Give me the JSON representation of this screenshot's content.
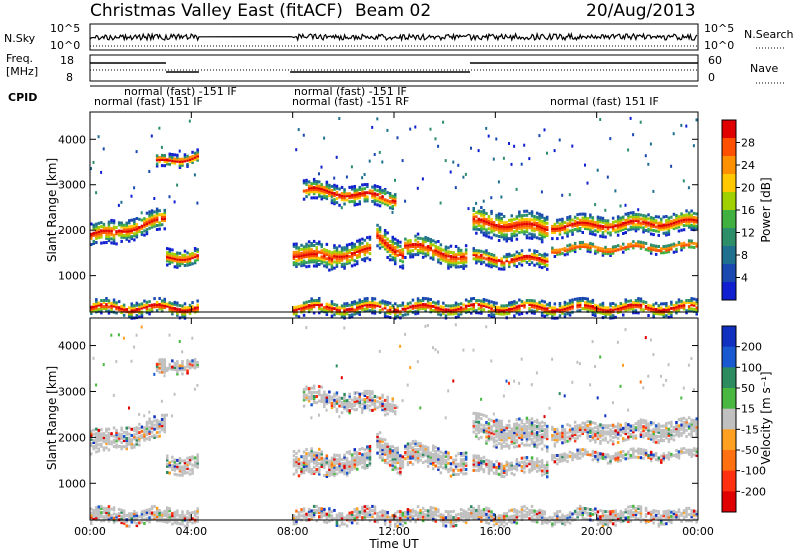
{
  "header": {
    "station": "Christmas Valley East (fitACF)",
    "beam": "Beam 02",
    "date": "20/Aug/2013"
  },
  "params": {
    "nsky_label": "N.Sky",
    "nsky_ticks": [
      "10^5",
      "10^0"
    ],
    "nsearch_label": "N.Search",
    "nsearch_ticks": [
      "10^5",
      "10^0"
    ],
    "freq_label_1": "Freq.",
    "freq_label_2": "[MHz]",
    "freq_ticks": [
      "18",
      "8"
    ],
    "nave_label": "Nave",
    "nave_ticks": [
      "60",
      "0"
    ],
    "cpid_label": "CPID"
  },
  "cpid_segments": [
    {
      "text": "normal (fast) -151 IF",
      "row": 1
    },
    {
      "text": "normal (fast) 151 IF",
      "row": 2
    },
    {
      "text": "normal (fast) -151 IF",
      "row": 1
    },
    {
      "text": "normal (fast) -151 RF",
      "row": 2
    },
    {
      "text": "normal (fast) 151 IF",
      "row": 2
    }
  ],
  "chart_data": [
    {
      "type": "heatmap",
      "title": "Power",
      "xlabel": "",
      "ylabel": "Slant Range [km]",
      "x_ticks": [
        "00:00",
        "04:00",
        "08:00",
        "12:00",
        "16:00",
        "20:00",
        "00:00"
      ],
      "y_ticks": [
        "1000",
        "2000",
        "3000",
        "4000"
      ],
      "ylim": [
        200,
        4600
      ],
      "colorbar_label": "Power [dB]",
      "colorbar_ticks": [
        "28",
        "24",
        "20",
        "16",
        "12",
        "8",
        "4"
      ],
      "colorbar_colors": [
        "#e00000",
        "#ff5000",
        "#ff9000",
        "#ffc800",
        "#a0d000",
        "#40b040",
        "#2d8f6a",
        "#1f6f8f",
        "#1848b0",
        "#1020d0"
      ]
    },
    {
      "type": "heatmap",
      "title": "Velocity",
      "xlabel": "Time UT",
      "ylabel": "Slant Range [km]",
      "x_ticks": [
        "00:00",
        "04:00",
        "08:00",
        "12:00",
        "16:00",
        "20:00",
        "00:00"
      ],
      "y_ticks": [
        "1000",
        "2000",
        "3000",
        "4000"
      ],
      "ylim": [
        200,
        4600
      ],
      "colorbar_label": "Velocity [m s⁻¹]",
      "colorbar_ticks": [
        "200",
        "100",
        "50",
        "15",
        "-15",
        "-50",
        "-100",
        "-200"
      ],
      "colorbar_colors": [
        "#1030c0",
        "#1858d0",
        "#2c8c60",
        "#48b840",
        "#c0c0c0",
        "#ffa020",
        "#ff7010",
        "#ff3010",
        "#e00000"
      ]
    }
  ]
}
